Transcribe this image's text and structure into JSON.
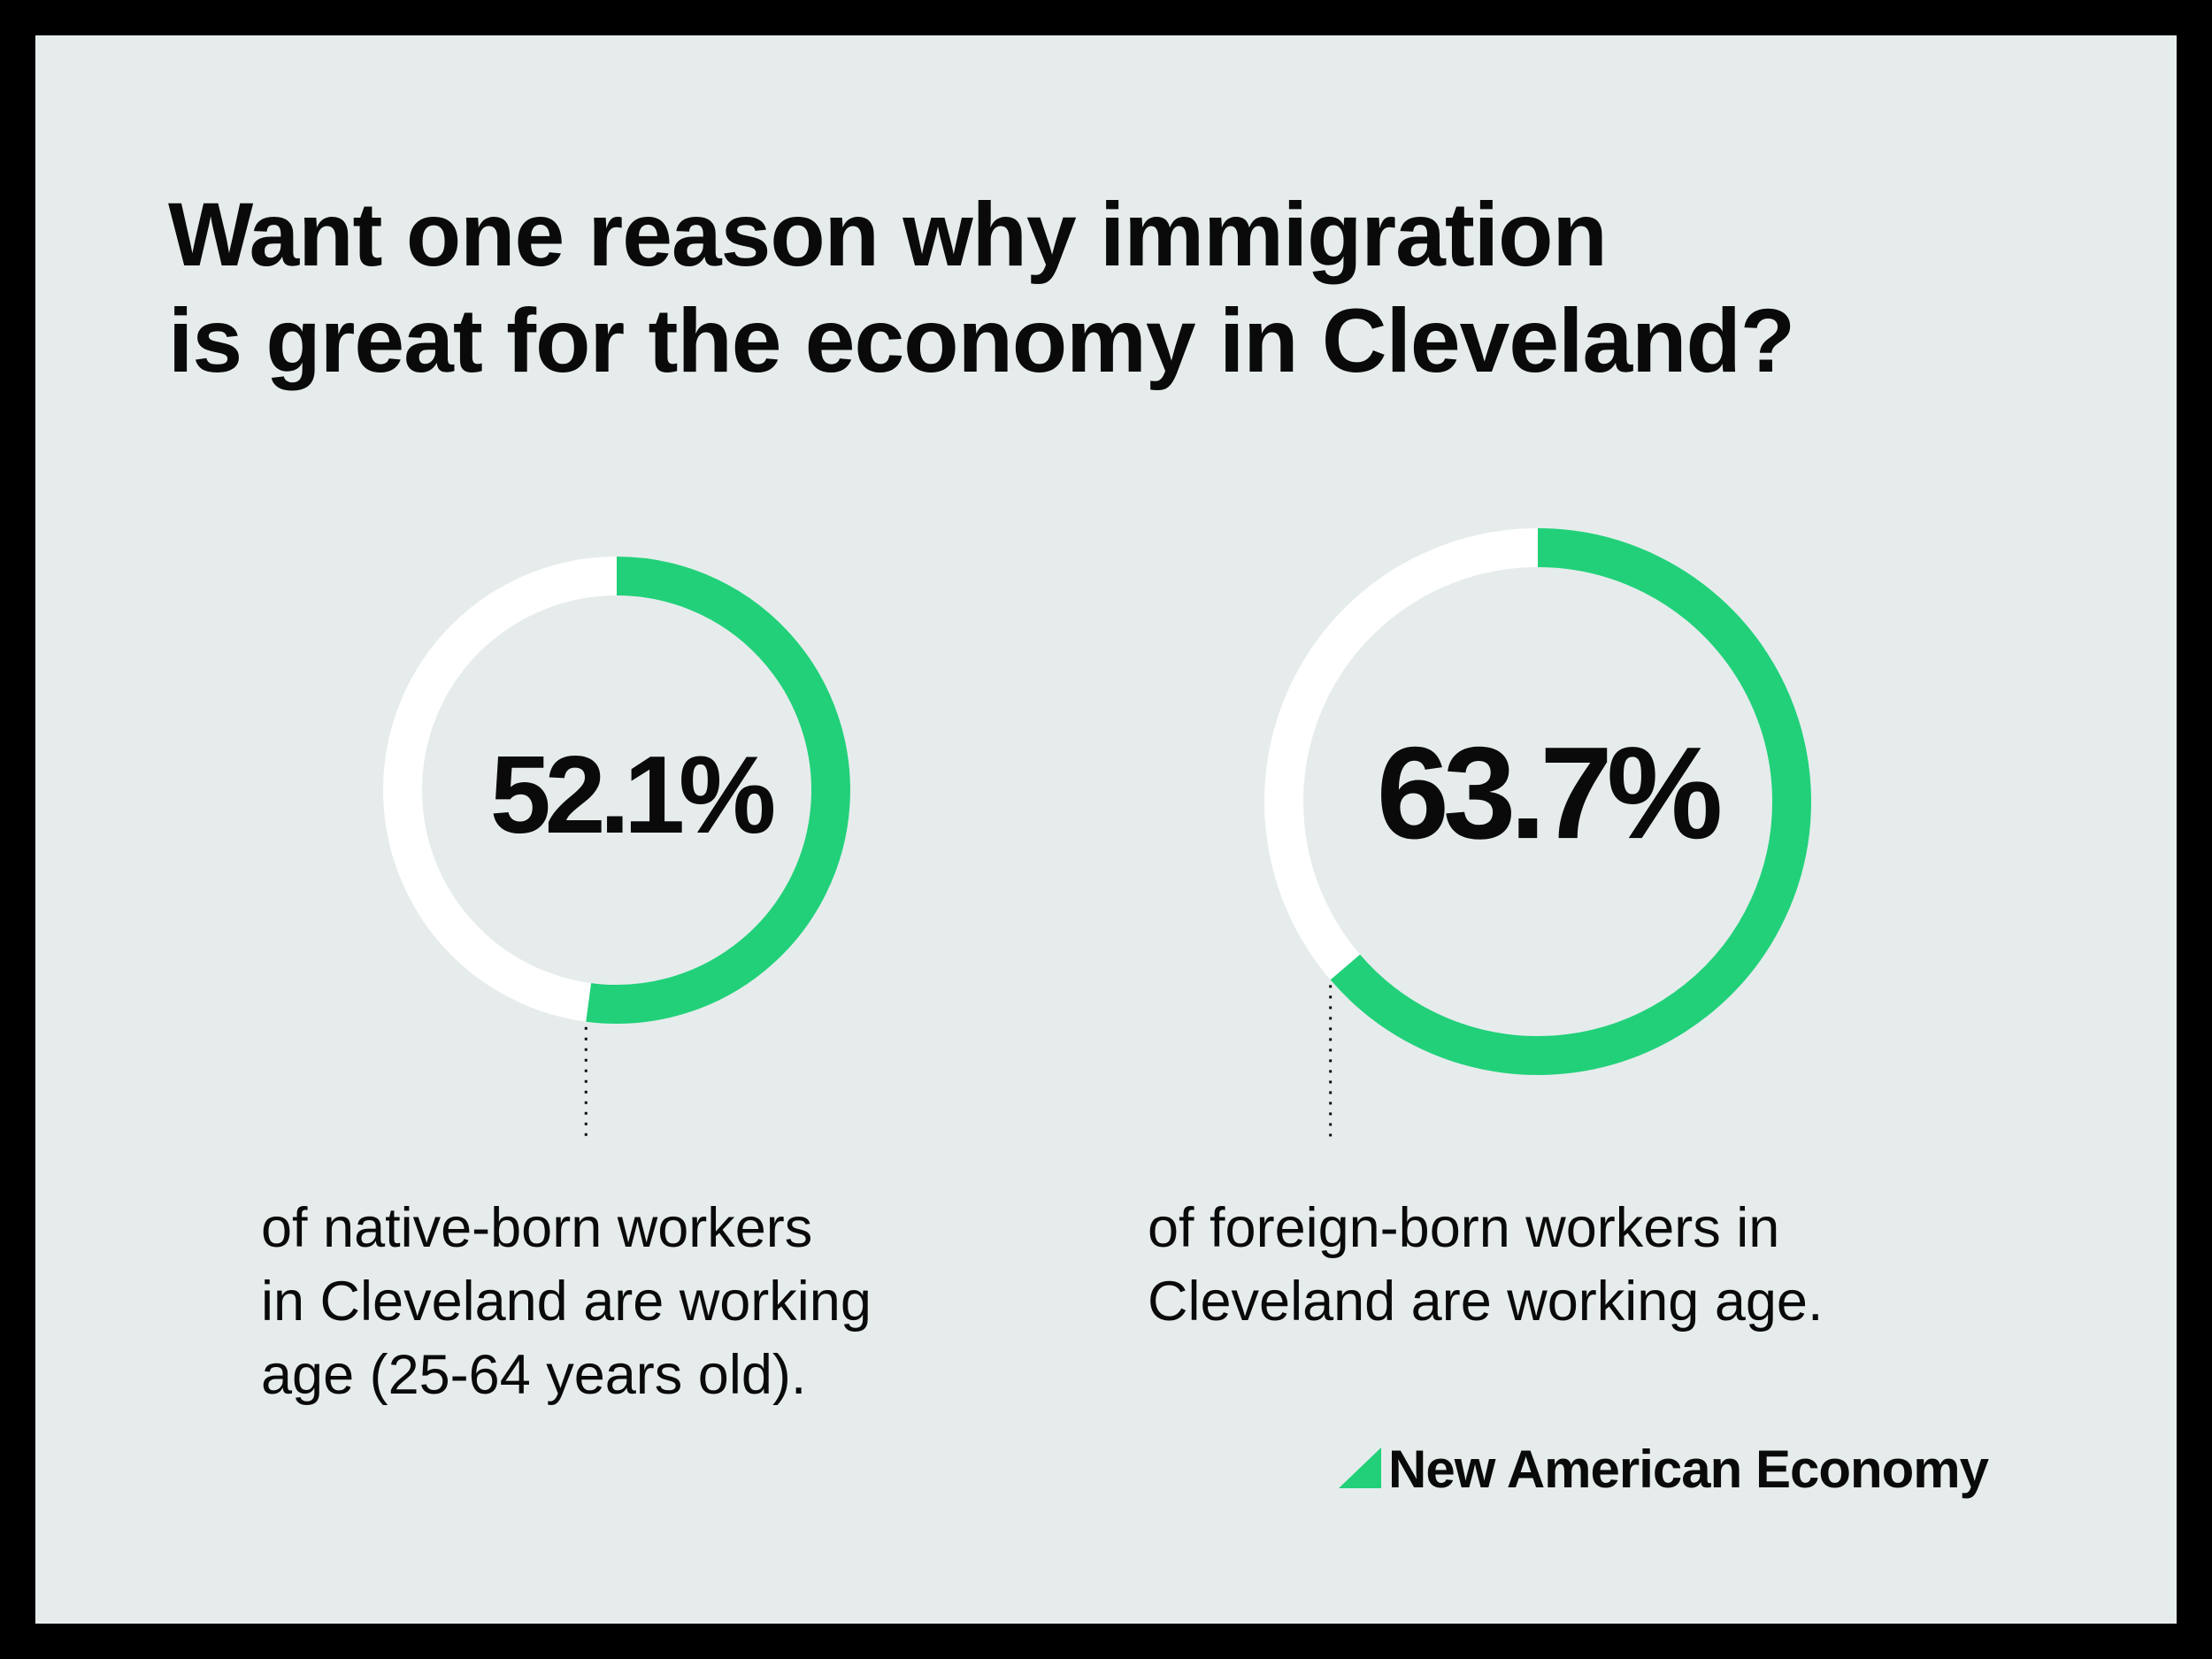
{
  "title_lines": [
    "Want one reason why immigration",
    "is great for the economy in Cleveland?"
  ],
  "colors": {
    "background": "#e6ecec",
    "border": "#000000",
    "accent": "#22d07a",
    "track": "#ffffff",
    "text": "#0a0a0a"
  },
  "chart_data": [
    {
      "type": "pie",
      "variant": "donut",
      "value": 52.1,
      "value_label": "52.1%",
      "caption_lines": [
        "of native-born workers",
        "in Cleveland are working",
        "age (25-64 years old)."
      ]
    },
    {
      "type": "pie",
      "variant": "donut",
      "value": 63.7,
      "value_label": "63.7%",
      "caption_lines": [
        "of foreign-born workers in",
        "Cleveland are working age."
      ]
    }
  ],
  "brand": {
    "name": "New American Economy",
    "logo_icon": "green-triangle-logo-icon"
  }
}
